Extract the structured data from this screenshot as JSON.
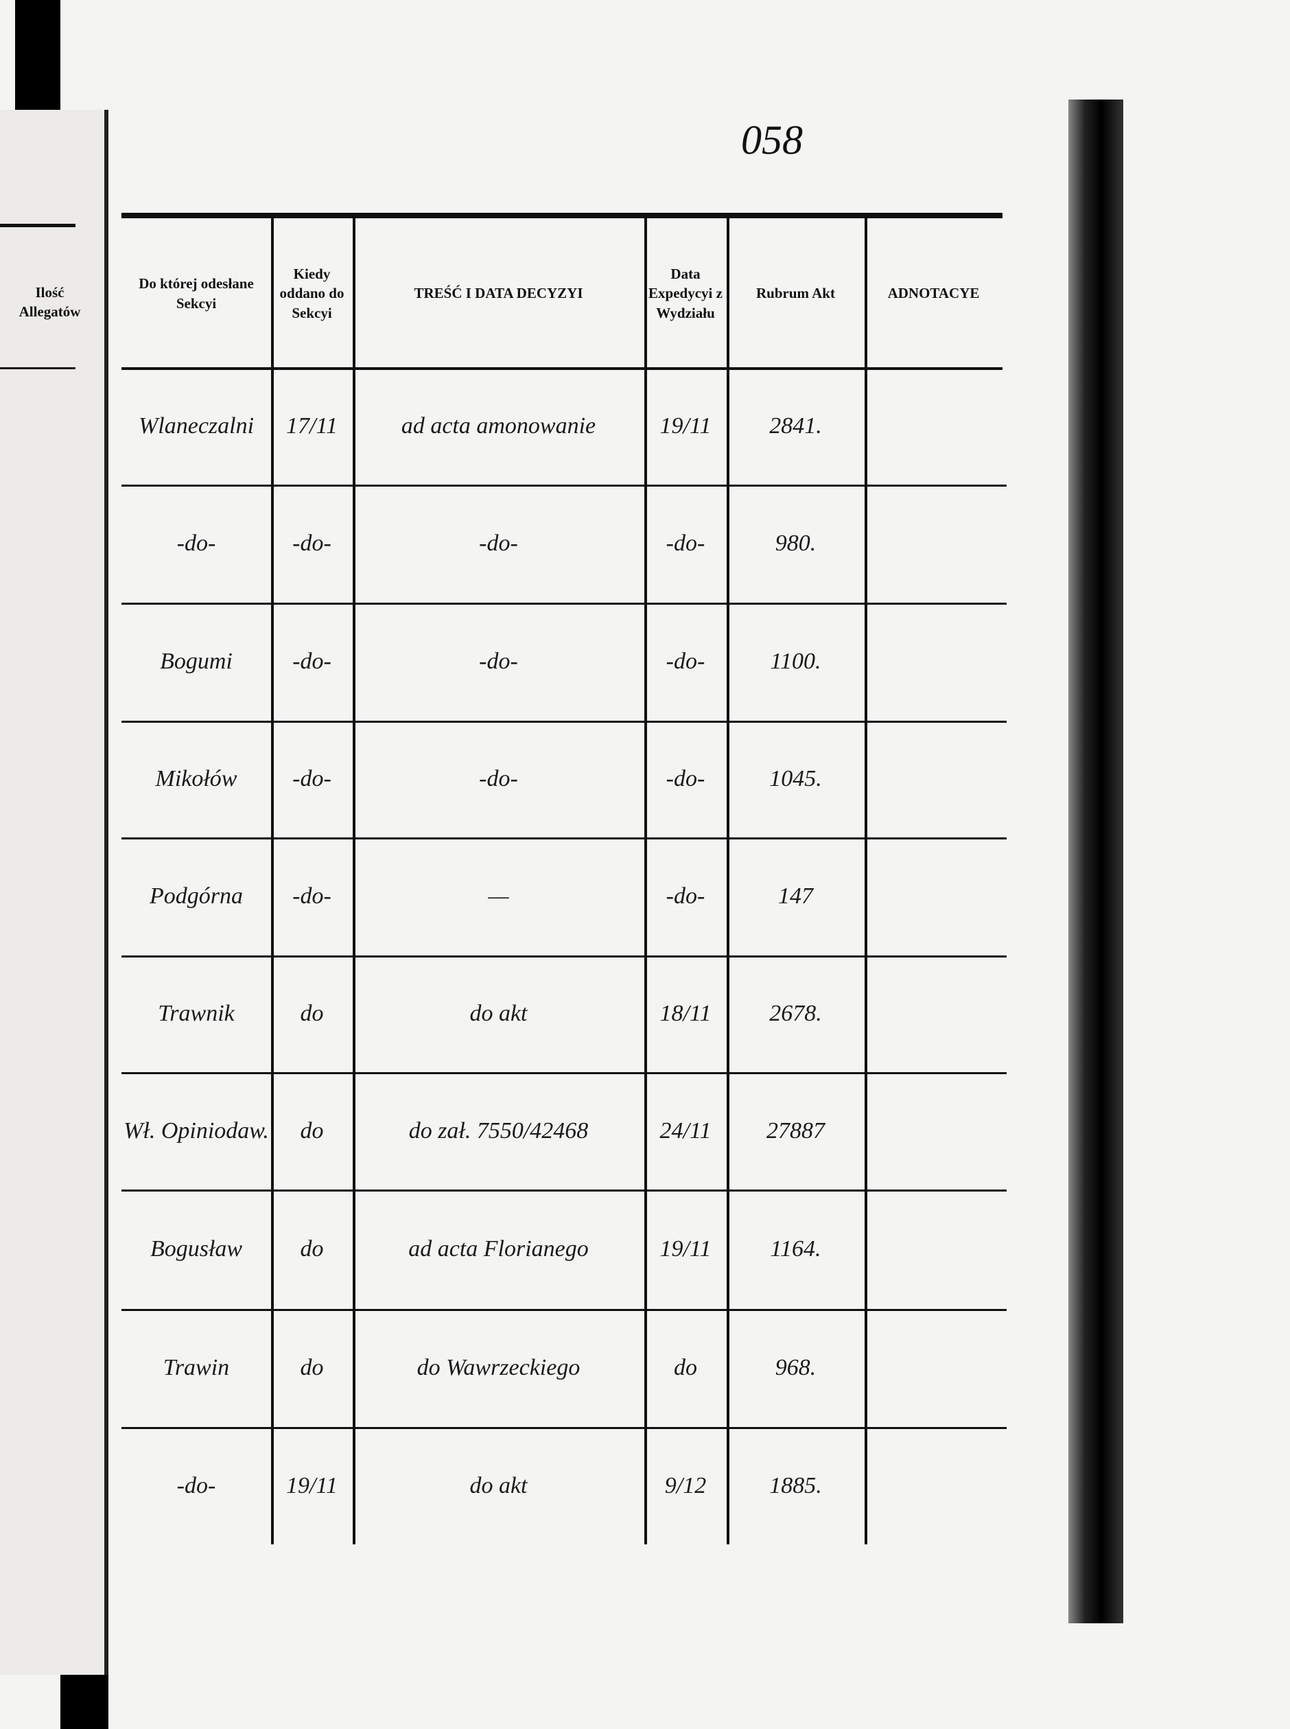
{
  "page_number": "058",
  "left_page": {
    "header": "Ilość Allegatów"
  },
  "table": {
    "headers": [
      "Do której odesłane Sekcyi",
      "Kiedy oddano do Sekcyi",
      "TREŚĆ I DATA DECYZYI",
      "Data Expedycyi z Wydziału",
      "Rubrum Akt",
      "ADNOTACYE"
    ],
    "rows": [
      [
        "Wlaneczalni",
        "17/11",
        "ad acta amonowanie",
        "19/11",
        "2841."
      ],
      [
        "-do-",
        "-do-",
        "-do-",
        "-do-",
        "980."
      ],
      [
        "Bogumi",
        "-do-",
        "-do-",
        "-do-",
        "1100."
      ],
      [
        "Mikołów",
        "-do-",
        "-do-",
        "-do-",
        "1045."
      ],
      [
        "Podgórna",
        "-do-",
        "—",
        "-do-",
        "147"
      ],
      [
        "Trawnik",
        "do",
        "do akt",
        "18/11",
        "2678."
      ],
      [
        "Wł. Opiniodaw.",
        "do",
        "do zał. 7550/42468",
        "24/11",
        "27887"
      ],
      [
        "Bogusław",
        "do",
        "ad acta Florianego",
        "19/11",
        "1164."
      ],
      [
        "Trawin",
        "do",
        "do Wawrzeckiego",
        "do",
        "968."
      ],
      [
        "-do-",
        "19/11",
        "do akt",
        "9/12",
        "1885."
      ]
    ]
  }
}
